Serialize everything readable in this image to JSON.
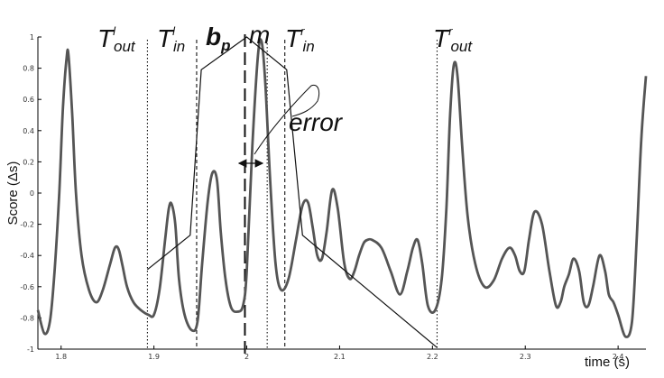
{
  "chart_data": {
    "type": "line",
    "ylabel": "Score (Δs)",
    "xlabel": "time (s)",
    "xlim": [
      1.775,
      2.43
    ],
    "ylim": [
      -1,
      1
    ],
    "x_ticks": [
      {
        "value": 1.8,
        "label": "1.8"
      },
      {
        "value": 1.9,
        "label": "1.9"
      },
      {
        "value": 2.0,
        "label": "2"
      },
      {
        "value": 2.1,
        "label": "2.1"
      },
      {
        "value": 2.2,
        "label": "2.2"
      },
      {
        "value": 2.3,
        "label": "2.3"
      },
      {
        "value": 2.4,
        "label": "2.4"
      }
    ],
    "y_ticks": [
      {
        "value": 1,
        "label": "1"
      },
      {
        "value": 0.8,
        "label": "0.8"
      },
      {
        "value": 0.6,
        "label": "0.6"
      },
      {
        "value": 0.4,
        "label": "0.4"
      },
      {
        "value": 0.2,
        "label": "0.2"
      },
      {
        "value": 0,
        "label": "0"
      },
      {
        "value": -0.2,
        "label": "-0.2"
      },
      {
        "value": -0.4,
        "label": "-0.4"
      },
      {
        "value": -0.6,
        "label": "-0.6"
      },
      {
        "value": -0.8,
        "label": "-0.8"
      },
      {
        "value": -1,
        "label": "-1"
      }
    ],
    "grid": false,
    "series": [
      {
        "color": "#555555",
        "x": [
          1.775,
          1.782,
          1.788,
          1.793,
          1.798,
          1.802,
          1.806,
          1.808,
          1.812,
          1.816,
          1.822,
          1.83,
          1.838,
          1.845,
          1.853,
          1.858,
          1.862,
          1.866,
          1.871,
          1.878,
          1.886,
          1.894,
          1.9,
          1.906,
          1.912,
          1.916,
          1.919,
          1.923,
          1.927,
          1.933,
          1.941,
          1.947,
          1.952,
          1.958,
          1.963,
          1.968,
          1.972,
          1.977,
          1.983,
          1.99,
          1.996,
          2.0,
          2.006,
          2.012,
          2.016,
          2.02,
          2.025,
          2.031,
          2.037,
          2.045,
          2.053,
          2.06,
          2.066,
          2.071,
          2.076,
          2.081,
          2.086,
          2.092,
          2.098,
          2.105,
          2.111,
          2.116,
          2.121,
          2.126,
          2.13,
          2.135,
          2.145,
          2.155,
          2.165,
          2.173,
          2.179,
          2.184,
          2.189,
          2.195,
          2.203,
          2.21,
          2.215,
          2.219,
          2.223,
          2.227,
          2.232,
          2.238,
          2.246,
          2.256,
          2.266,
          2.275,
          2.283,
          2.289,
          2.294,
          2.299,
          2.304,
          2.31,
          2.318,
          2.326,
          2.333,
          2.338,
          2.342,
          2.347,
          2.352,
          2.358,
          2.363,
          2.368,
          2.373,
          2.38,
          2.386,
          2.39,
          2.395,
          2.4,
          2.408,
          2.415,
          2.42,
          2.425,
          2.43
        ],
        "y": [
          -0.75,
          -0.9,
          -0.82,
          -0.5,
          0.0,
          0.55,
          0.87,
          0.88,
          0.5,
          0.0,
          -0.4,
          -0.62,
          -0.7,
          -0.62,
          -0.45,
          -0.35,
          -0.36,
          -0.46,
          -0.6,
          -0.7,
          -0.75,
          -0.78,
          -0.78,
          -0.62,
          -0.3,
          -0.1,
          -0.07,
          -0.2,
          -0.55,
          -0.78,
          -0.88,
          -0.82,
          -0.45,
          -0.05,
          0.13,
          0.08,
          -0.25,
          -0.55,
          -0.73,
          -0.76,
          -0.72,
          -0.5,
          0.3,
          0.88,
          0.97,
          0.7,
          0.1,
          -0.45,
          -0.62,
          -0.55,
          -0.3,
          -0.08,
          -0.06,
          -0.22,
          -0.4,
          -0.42,
          -0.25,
          0.02,
          -0.1,
          -0.45,
          -0.55,
          -0.5,
          -0.4,
          -0.32,
          -0.3,
          -0.3,
          -0.35,
          -0.5,
          -0.65,
          -0.5,
          -0.35,
          -0.3,
          -0.45,
          -0.72,
          -0.75,
          -0.55,
          -0.1,
          0.5,
          0.82,
          0.75,
          0.3,
          -0.15,
          -0.45,
          -0.6,
          -0.56,
          -0.42,
          -0.35,
          -0.4,
          -0.5,
          -0.5,
          -0.3,
          -0.12,
          -0.2,
          -0.5,
          -0.72,
          -0.7,
          -0.6,
          -0.52,
          -0.42,
          -0.5,
          -0.7,
          -0.72,
          -0.6,
          -0.4,
          -0.5,
          -0.65,
          -0.7,
          -0.78,
          -0.92,
          -0.82,
          -0.3,
          0.35,
          0.75
        ]
      }
    ],
    "model": {
      "color": "#111111",
      "x": [
        1.893,
        1.939,
        1.951,
        2.0,
        2.043,
        2.06,
        2.205
      ],
      "y": [
        -0.49,
        -0.27,
        0.79,
        1.0,
        0.79,
        -0.27,
        -0.99
      ]
    },
    "vlines": [
      {
        "id": "t-out-left",
        "x": 1.893,
        "style": "dotted"
      },
      {
        "id": "t-in-left",
        "x": 1.946,
        "style": "dashed"
      },
      {
        "id": "bp",
        "x": 1.998,
        "style": "longdash"
      },
      {
        "id": "m",
        "x": 2.022,
        "style": "dotted"
      },
      {
        "id": "t-in-right",
        "x": 2.041,
        "style": "dashed"
      },
      {
        "id": "t-out-right",
        "x": 2.205,
        "style": "dotted"
      }
    ],
    "annotations": {
      "t_out_left": {
        "main": "T",
        "sup": "l",
        "sub": "out"
      },
      "t_in_left": {
        "main": "T",
        "sup": "l",
        "sub": "in"
      },
      "bp": {
        "main": "b",
        "sub": "p"
      },
      "m": {
        "main": "m"
      },
      "t_in_right": {
        "main": "T",
        "sup": "r",
        "sub": "in"
      },
      "t_out_right": {
        "main": "T",
        "sup": "r",
        "sub": "out"
      },
      "error": {
        "text": "error"
      }
    }
  }
}
